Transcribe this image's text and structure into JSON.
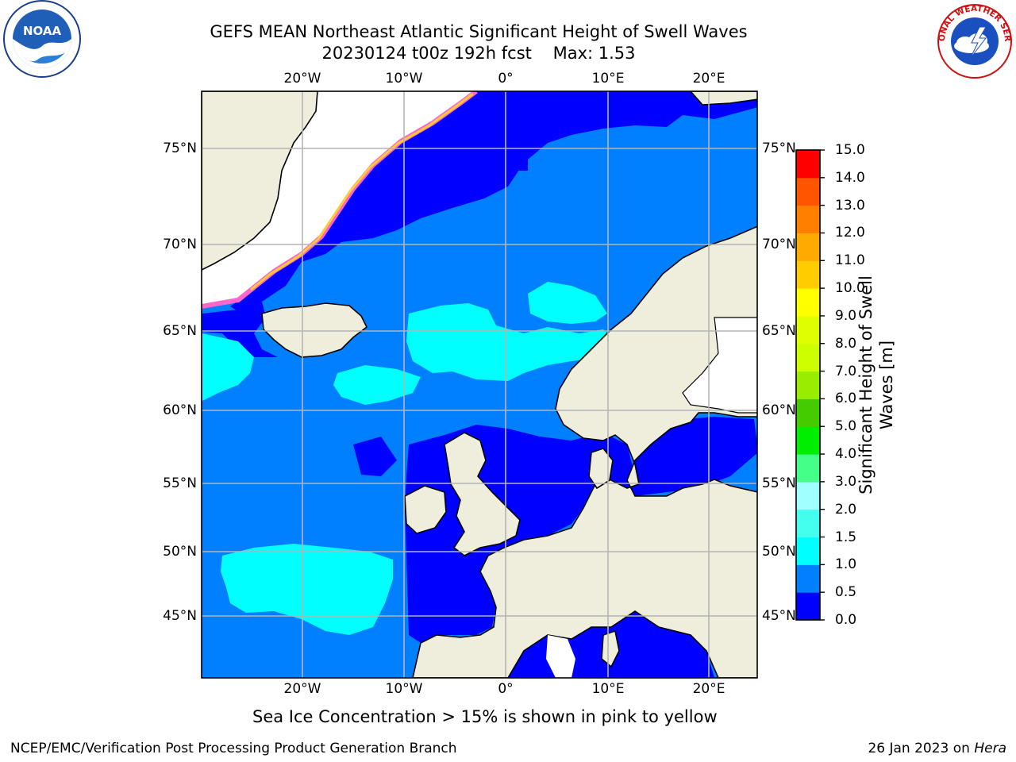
{
  "title_line1": "GEFS MEAN Northeast Atlantic Significant Height of Swell Waves",
  "title_line2": "20230124 t00z 192h fcst    Max: 1.53",
  "logos": {
    "left": "NOAA",
    "right": "NATIONAL WEATHER SERVICE"
  },
  "map": {
    "lon_labels": [
      "20°W",
      "10°W",
      "0°",
      "10°E",
      "20°E"
    ],
    "lat_labels": [
      "75°N",
      "70°N",
      "65°N",
      "60°N",
      "55°N",
      "50°N",
      "45°N"
    ],
    "lon_range": [
      -30,
      25
    ],
    "lat_range": [
      41,
      78
    ],
    "colors": {
      "land": "#efeedd",
      "coast": "#000000",
      "grid": "#b4b4b4",
      "ice_free_white": "#ffffff",
      "ice_edge": "#ff66cc"
    }
  },
  "colorbar": {
    "label": "Significant Height of Swell Waves [m]",
    "tick_labels": [
      "15.0",
      "14.0",
      "13.0",
      "12.0",
      "11.0",
      "10.0",
      "9.0",
      "8.0",
      "7.0",
      "6.0",
      "5.0",
      "4.0",
      "3.0",
      "2.0",
      "1.5",
      "1.0",
      "0.5",
      "0.0"
    ],
    "colors_bottom_to_top": [
      "#0000ff",
      "#0080ff",
      "#00ffff",
      "#44ffee",
      "#a0ffff",
      "#44ff88",
      "#00ee00",
      "#44cc00",
      "#99ee00",
      "#ccff00",
      "#ddff00",
      "#ffff00",
      "#ffcc00",
      "#ffaa00",
      "#ff8000",
      "#ff5500",
      "#ff0000"
    ]
  },
  "footnote": "Sea Ice Concentration > 15% is shown in pink to yellow",
  "credit_left": "NCEP/EMC/Verification Post Processing Product Generation Branch",
  "credit_right_prefix": "26 Jan 2023 on ",
  "credit_right_host": "Hera"
}
